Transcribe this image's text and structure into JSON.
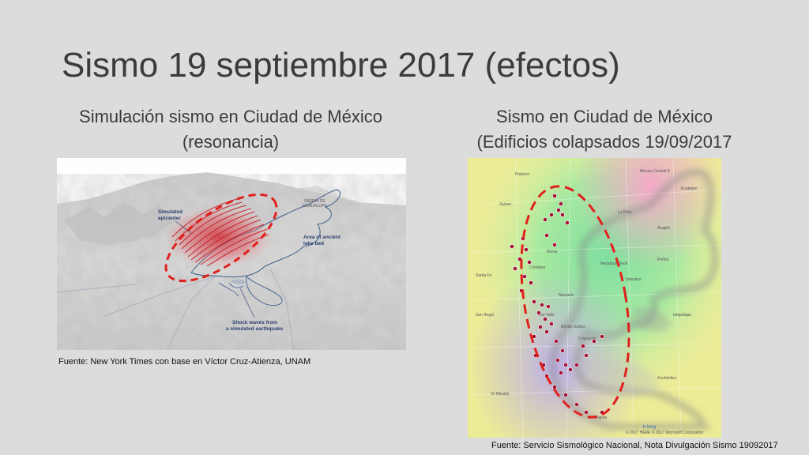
{
  "slide": {
    "title": "Sismo 19 septiembre 2017 (efectos)"
  },
  "left_panel": {
    "heading_line1": "Simulación sismo en Ciudad de México",
    "heading_line2": "(resonancia)",
    "image_labels": {
      "epicenter": [
        "Simulated",
        "epicenter"
      ],
      "sierra": [
        "SIERRA DE",
        "GUADALUPE"
      ],
      "lake_bed": [
        "Area of ancient",
        "lake bed"
      ],
      "shock_waves": [
        "Shock waves from",
        "a simulated earthquake"
      ]
    },
    "caption": "Fuente: New York Times con base en  Víctor Cruz-Atienza, UNAM"
  },
  "right_panel": {
    "heading_line1": "Sismo en Ciudad de México",
    "heading_line2": "(Edificios colapsados 19/09/2017",
    "map_labels": [
      "Mexico Central II",
      "Polanco",
      "Aragón",
      "Nezahualcóyotl",
      "Juárez",
      "Narvarte",
      "Coyoacán",
      "Iztapalapa",
      "Tlalpan",
      "San Ángel",
      "Del Valle",
      "Roma",
      "Condesa",
      "La Prim.",
      "Peñón",
      "Iztacalco",
      "Benito Juárez",
      "Xochimilco",
      "Santa Fe",
      "El Mirador",
      "Ecatepec"
    ],
    "map_footer": "© 2017 HERE © 2017 Microsoft Corporation",
    "caption": "Fuente: Servicio Sismológico Nacional, Nota Divulgación Sismo 19092017"
  },
  "colors": {
    "background": "#dcdcdc",
    "title_text": "#3b3b3b",
    "dashed_ellipse": "#e0201b",
    "collapse_markers": "#a31035",
    "lake_outline": "#3e5e8c"
  }
}
